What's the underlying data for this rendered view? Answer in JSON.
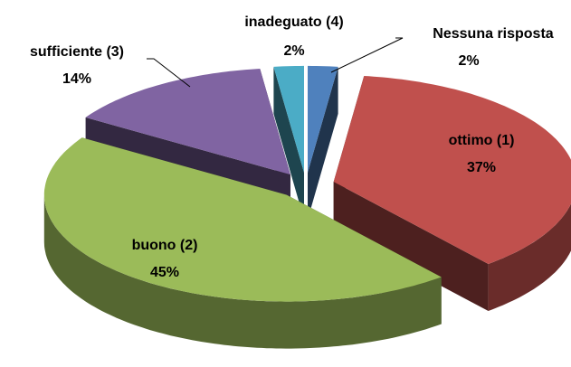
{
  "chart_data": {
    "type": "pie3d",
    "categories": [
      "Nessuna risposta",
      "ottimo (1)",
      "buono (2)",
      "sufficiente (3)",
      "inadeguato (4)"
    ],
    "values": [
      2,
      37,
      45,
      14,
      2
    ],
    "value_labels": [
      "2%",
      "37%",
      "45%",
      "14%",
      "2%"
    ],
    "colors": [
      "#4f81bd",
      "#c0504d",
      "#9bbb59",
      "#8064a2",
      "#4bacc6"
    ]
  }
}
